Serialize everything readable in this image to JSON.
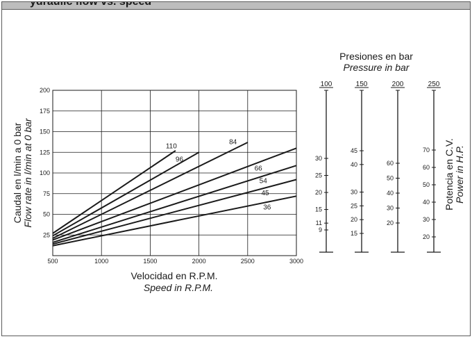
{
  "header": {
    "title_fragment": "ydraulic flow vs. speed"
  },
  "chart_data": {
    "type": "line",
    "x_label": "Velocidad en R.P.M.",
    "x_label_en": "Speed in R.P.M.",
    "y_label": "Caudal en l/min a 0 bar",
    "y_label_en": "Flow rate in l/min at 0 bar",
    "xlim": [
      500,
      3000
    ],
    "ylim": [
      0,
      200
    ],
    "x_ticks": [
      500,
      1000,
      1500,
      2000,
      2500,
      3000
    ],
    "y_ticks": [
      25,
      50,
      75,
      100,
      125,
      150,
      175,
      200
    ],
    "grid": true,
    "series": [
      {
        "name": "110",
        "points": [
          [
            500,
            27
          ],
          [
            1760,
            127
          ]
        ]
      },
      {
        "name": "96",
        "points": [
          [
            500,
            24
          ],
          [
            2000,
            125
          ]
        ]
      },
      {
        "name": "84",
        "points": [
          [
            500,
            21
          ],
          [
            2500,
            137
          ]
        ]
      },
      {
        "name": "66",
        "points": [
          [
            500,
            19
          ],
          [
            3000,
            130
          ]
        ]
      },
      {
        "name": "54",
        "points": [
          [
            500,
            16
          ],
          [
            3000,
            109
          ]
        ]
      },
      {
        "name": "45",
        "points": [
          [
            500,
            14
          ],
          [
            3000,
            92
          ]
        ]
      },
      {
        "name": "36",
        "points": [
          [
            500,
            12
          ],
          [
            3000,
            72
          ]
        ]
      }
    ],
    "curve_labels": [
      {
        "text": "110",
        "at": [
          1660,
          130
        ]
      },
      {
        "text": "96",
        "at": [
          1760,
          114
        ]
      },
      {
        "text": "84",
        "at": [
          2310,
          135
        ]
      },
      {
        "text": "66",
        "at": [
          2570,
          103
        ]
      },
      {
        "text": "54",
        "at": [
          2620,
          88
        ]
      },
      {
        "text": "45",
        "at": [
          2640,
          73
        ]
      },
      {
        "text": "36",
        "at": [
          2660,
          56
        ]
      }
    ]
  },
  "pressure_section": {
    "title": "Presiones en bar",
    "title_en": "Pressure in bar",
    "scales": [
      {
        "pressure": "100",
        "ticks": [
          {
            "label": "30",
            "value": 30
          },
          {
            "label": "25",
            "value": 25
          },
          {
            "label": "20",
            "value": 20
          },
          {
            "label": "15",
            "value": 15
          },
          {
            "label": "11",
            "value": 11
          },
          {
            "label": "9",
            "value": 9
          }
        ]
      },
      {
        "pressure": "150",
        "ticks": [
          {
            "label": "45",
            "value": 45
          },
          {
            "label": "40",
            "value": 40
          },
          {
            "label": "30",
            "value": 30
          },
          {
            "label": "25",
            "value": 25
          },
          {
            "label": "20",
            "value": 20
          },
          {
            "label": "15",
            "value": 15
          }
        ]
      },
      {
        "pressure": "200",
        "ticks": [
          {
            "label": "60",
            "value": 60
          },
          {
            "label": "50",
            "value": 50
          },
          {
            "label": "40",
            "value": 40
          },
          {
            "label": "30",
            "value": 30
          },
          {
            "label": "20",
            "value": 20
          }
        ]
      }
    ],
    "power_scale": {
      "pressure": "250",
      "title": "Potencia en C.V.",
      "title_en": "Power in H.P.",
      "ticks": [
        {
          "label": "70",
          "value": 70
        },
        {
          "label": "60",
          "value": 60
        },
        {
          "label": "50",
          "value": 50
        },
        {
          "label": "40",
          "value": 40
        },
        {
          "label": "30",
          "value": 30
        },
        {
          "label": "20",
          "value": 20
        }
      ]
    }
  }
}
